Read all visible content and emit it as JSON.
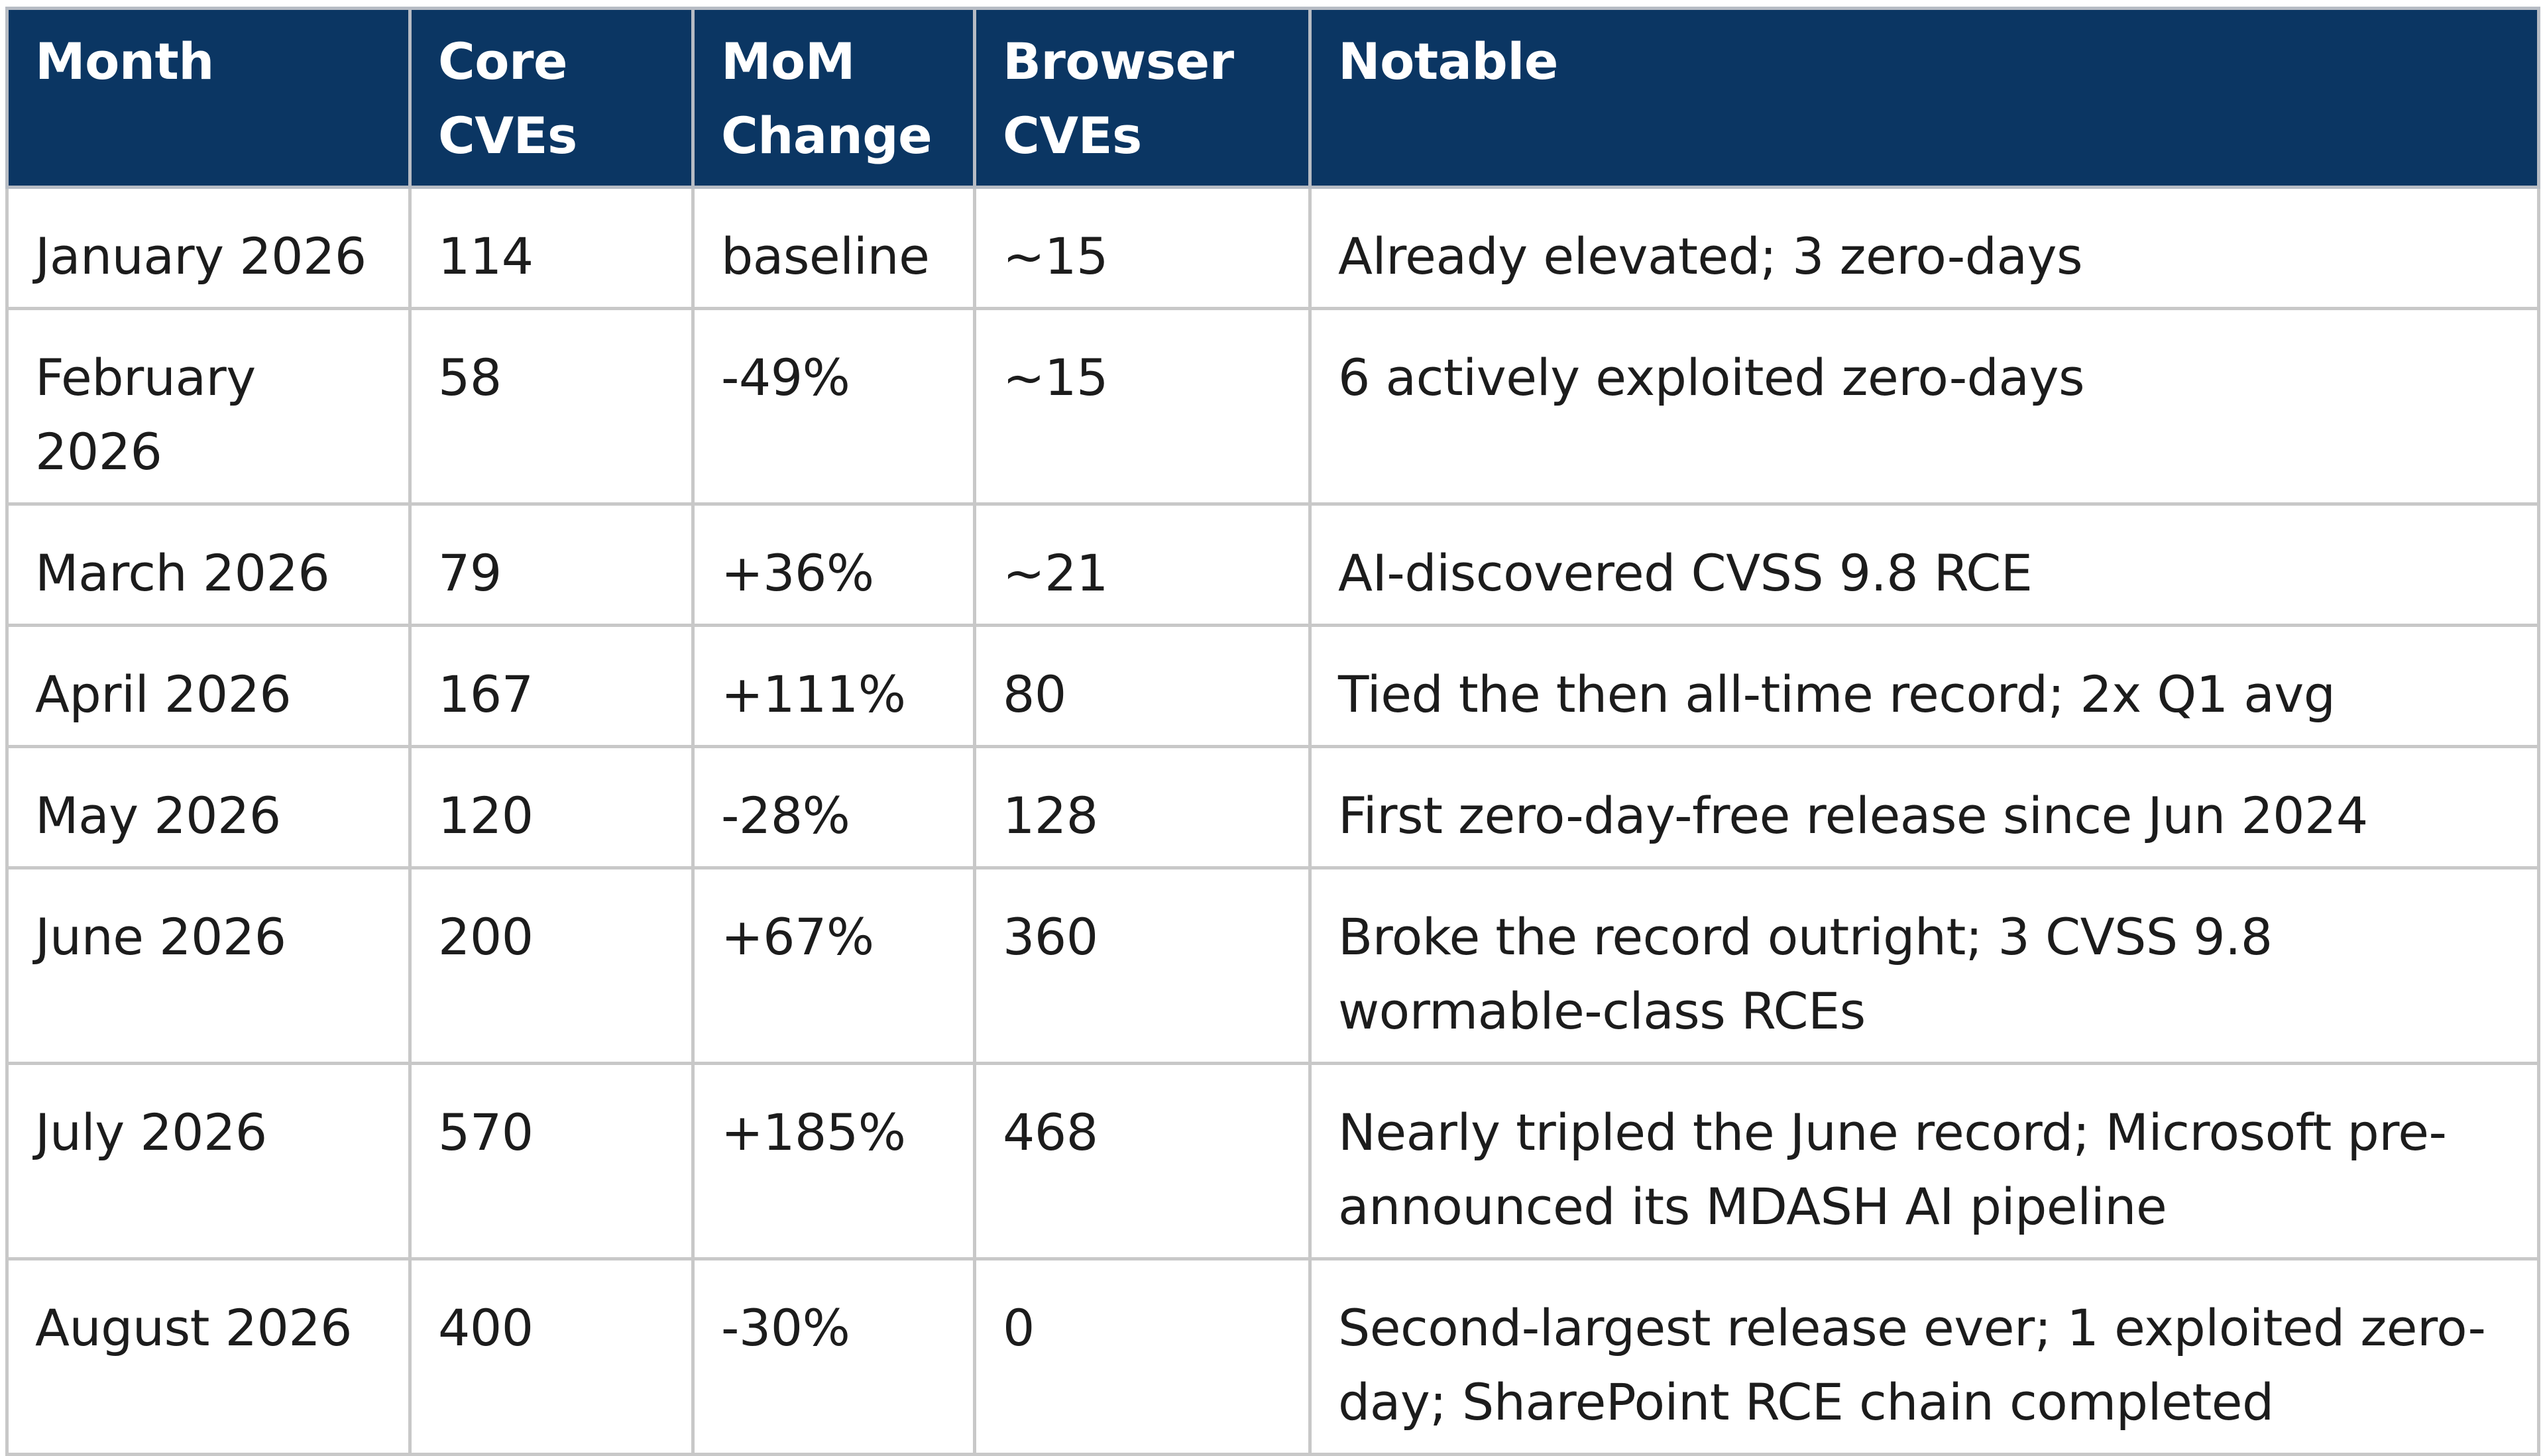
{
  "table": {
    "headers": [
      {
        "line1": "Month",
        "line2": ""
      },
      {
        "line1": "Core",
        "line2": "CVEs"
      },
      {
        "line1": "MoM",
        "line2": "Change"
      },
      {
        "line1": "Browser",
        "line2": "CVEs"
      },
      {
        "line1": "Notable",
        "line2": ""
      }
    ],
    "rows": [
      {
        "month": "January 2026",
        "core": "114",
        "mom": "baseline",
        "browser": "~15",
        "notable": "Already elevated; 3 zero-days"
      },
      {
        "month": "February 2026",
        "core": "58",
        "mom": "-49%",
        "browser": "~15",
        "notable": "6 actively exploited zero-days"
      },
      {
        "month": "March 2026",
        "core": "79",
        "mom": "+36%",
        "browser": "~21",
        "notable": "AI-discovered CVSS 9.8 RCE"
      },
      {
        "month": "April 2026",
        "core": "167",
        "mom": "+111%",
        "browser": "80",
        "notable": "Tied the then all-time record; 2x Q1 avg"
      },
      {
        "month": "May 2026",
        "core": "120",
        "mom": "-28%",
        "browser": "128",
        "notable": "First zero-day-free release since Jun 2024"
      },
      {
        "month": "June 2026",
        "core": "200",
        "mom": "+67%",
        "browser": "360",
        "notable": "Broke the record outright; 3 CVSS 9.8 wormable-class RCEs"
      },
      {
        "month": "July 2026",
        "core": "570",
        "mom": "+185%",
        "browser": "468",
        "notable": "Nearly tripled the June record; Microsoft pre-announced its MDASH AI pipeline"
      },
      {
        "month": "August 2026",
        "core": "400",
        "mom": "-30%",
        "browser": "0",
        "notable": "Second-largest release ever; 1 exploited zero-day; SharePoint RCE chain completed"
      }
    ]
  },
  "colors": {
    "header_background": "#0b3663",
    "header_text": "#ffffff",
    "border": "#c8c8c8",
    "body_text": "#1c1c1c"
  }
}
